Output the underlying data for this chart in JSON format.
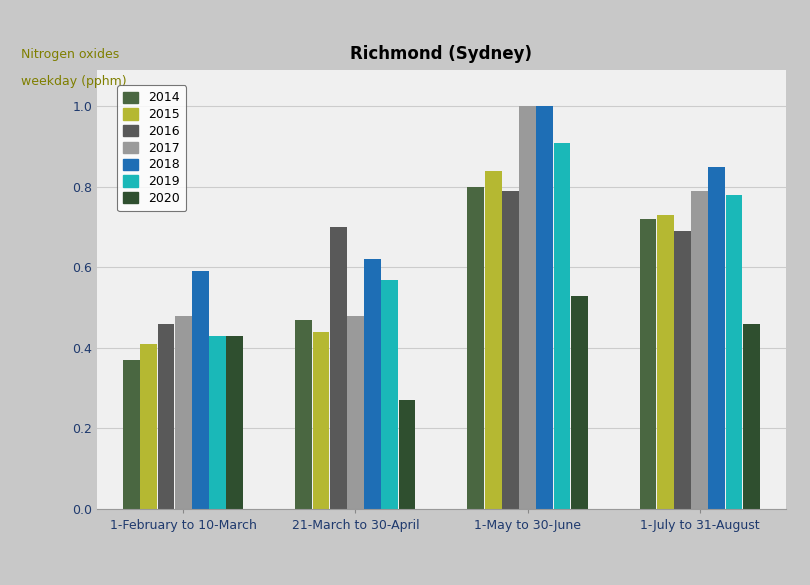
{
  "title": "Richmond (Sydney)",
  "ylabel_line1": "Nitrogen oxides",
  "ylabel_line2": "weekday (pphm)",
  "categories": [
    "1-February to 10-March",
    "21-March to 30-April",
    "1-May to 30-June",
    "1-July to 31-August"
  ],
  "years": [
    "2014",
    "2015",
    "2016",
    "2017",
    "2018",
    "2019",
    "2020"
  ],
  "colors": [
    "#4a6741",
    "#b5b832",
    "#595959",
    "#9a9a9a",
    "#1e6eb5",
    "#1ab8b8",
    "#2f4f2f"
  ],
  "values": [
    [
      0.37,
      0.41,
      0.46,
      0.48,
      0.59,
      0.43,
      0.43
    ],
    [
      0.47,
      0.44,
      0.7,
      0.48,
      0.62,
      0.57,
      0.27
    ],
    [
      0.8,
      0.84,
      0.79,
      1.0,
      1.0,
      0.91,
      0.53
    ],
    [
      0.72,
      0.73,
      0.69,
      0.79,
      0.85,
      0.78,
      0.46
    ]
  ],
  "ylim": [
    0.0,
    1.09
  ],
  "yticks": [
    0.0,
    0.2,
    0.4,
    0.6,
    0.8,
    1.0
  ],
  "outer_bg": "#c8c8c8",
  "inner_bg": "#f0f0f0",
  "plot_bg": "#f0f0f0",
  "title_fontsize": 12,
  "tick_fontsize": 9,
  "legend_fontsize": 9,
  "tick_color": "#1f3a6e",
  "ylabel_color": "#7f7f00",
  "xlabel_color": "#1f3a6e"
}
